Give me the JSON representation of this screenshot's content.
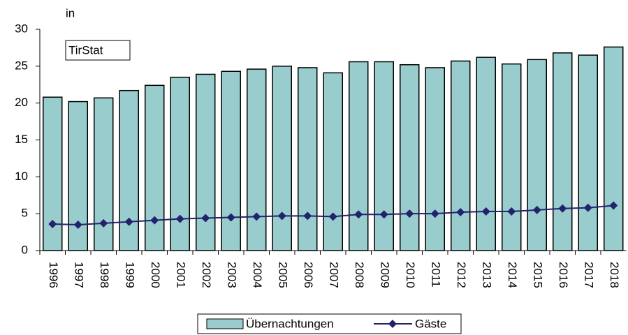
{
  "chart_data": {
    "type": "bar",
    "unit_label": "in",
    "annotation": "TirStat",
    "categories": [
      "1996",
      "1997",
      "1998",
      "1999",
      "2000",
      "2001",
      "2002",
      "2003",
      "2004",
      "2005",
      "2006",
      "2007",
      "2008",
      "2009",
      "2010",
      "2011",
      "2012",
      "2013",
      "2014",
      "2015",
      "2016",
      "2017",
      "2018"
    ],
    "series": [
      {
        "name": "Übernachtungen",
        "type": "bar",
        "color": "#99cccc",
        "values": [
          20.8,
          20.2,
          20.7,
          21.7,
          22.4,
          23.5,
          23.9,
          24.3,
          24.6,
          25.0,
          24.8,
          24.1,
          25.6,
          25.6,
          25.2,
          24.8,
          25.7,
          26.2,
          25.3,
          25.9,
          26.8,
          26.5,
          27.6
        ]
      },
      {
        "name": "Gäste",
        "type": "line",
        "color": "#22226e",
        "values": [
          3.6,
          3.5,
          3.7,
          3.9,
          4.1,
          4.3,
          4.4,
          4.5,
          4.6,
          4.7,
          4.7,
          4.6,
          4.9,
          4.9,
          5.0,
          5.0,
          5.2,
          5.3,
          5.3,
          5.5,
          5.7,
          5.8,
          6.1
        ]
      }
    ],
    "ylim": [
      0,
      30
    ],
    "yticks": [
      0,
      5,
      10,
      15,
      20,
      25,
      30
    ],
    "legend": "bottom"
  }
}
